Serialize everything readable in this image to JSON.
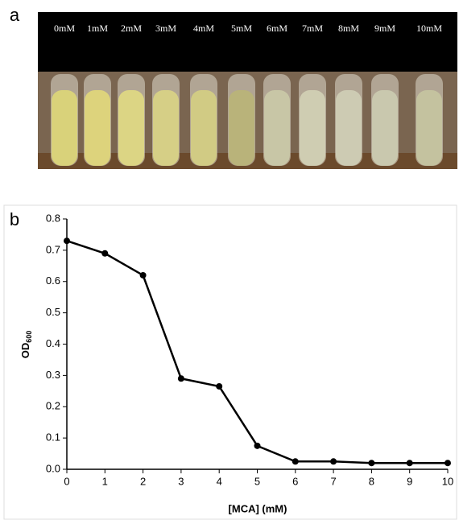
{
  "panel_labels": [
    "a",
    "b"
  ],
  "photo": {
    "tube_labels": [
      "0mM",
      "1mM",
      "2mM",
      "3mM",
      "4mM",
      "5mM",
      "6mM",
      "7mM",
      "8mM",
      "9mM",
      "10mM"
    ]
  },
  "chart_data": {
    "type": "line",
    "x": [
      0,
      1,
      2,
      3,
      4,
      5,
      6,
      7,
      8,
      9,
      10
    ],
    "series": [
      {
        "color": "#000000",
        "values": [
          0.73,
          0.69,
          0.62,
          0.29,
          0.265,
          0.075,
          0.025,
          0.025,
          0.02,
          0.02,
          0.02
        ]
      }
    ],
    "xlim": [
      0,
      10
    ],
    "xticks": [
      0,
      1,
      2,
      3,
      4,
      5,
      6,
      7,
      8,
      9,
      10
    ],
    "ylim": [
      0,
      0.8
    ],
    "yticks": [
      {
        "value": 0,
        "label": "0.0"
      },
      0.1,
      0.2,
      0.3,
      0.4,
      0.5,
      0.6,
      0.7,
      0.8
    ],
    "xlabel": "[MCA] (mM)",
    "ylabel": "OD",
    "ylabel_subscript": "600"
  }
}
